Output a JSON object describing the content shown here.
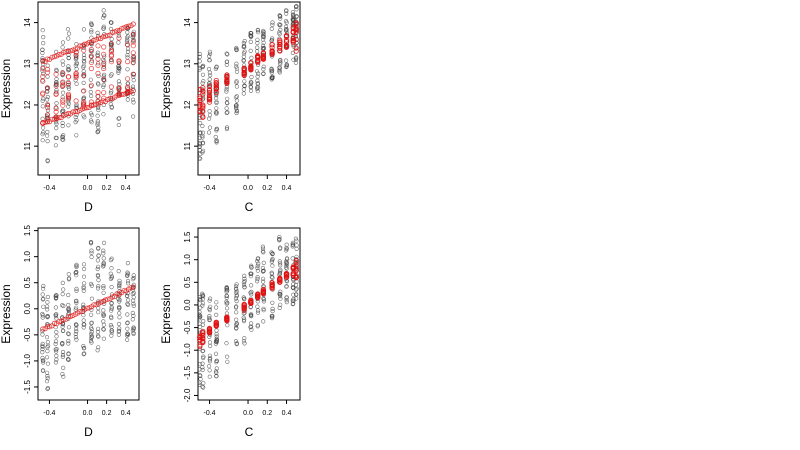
{
  "colors": {
    "observed": "#3a3a3a",
    "fitted": "#e01010",
    "axis": "#000000"
  },
  "chart_data": [
    {
      "type": "scatter",
      "title": "",
      "xlabel": "D",
      "ylabel": "Expression",
      "xlim": [
        -0.52,
        0.54
      ],
      "ylim": [
        10.3,
        14.5
      ],
      "xticks": [
        -0.4,
        0.0,
        0.2,
        0.4
      ],
      "xtick_labels": [
        "-0.4",
        "0.0",
        "0.2",
        "0.4"
      ],
      "yticks": [
        11,
        12,
        13,
        14
      ],
      "ytick_labels": [
        "11",
        "12",
        "13",
        "14"
      ],
      "grid": false,
      "observed": {
        "x_levels": [
          -0.47,
          -0.42,
          -0.33,
          -0.26,
          -0.2,
          -0.12,
          -0.04,
          0.04,
          0.11,
          0.17,
          0.25,
          0.33,
          0.42,
          0.48
        ],
        "y_ranges": [
          [
            10.8,
            13.9
          ],
          [
            10.6,
            13.2
          ],
          [
            11.0,
            13.3
          ],
          [
            10.9,
            13.6
          ],
          [
            11.4,
            13.9
          ],
          [
            11.2,
            13.7
          ],
          [
            11.6,
            13.9
          ],
          [
            11.5,
            14.0
          ],
          [
            11.3,
            14.2
          ],
          [
            11.6,
            14.4
          ],
          [
            11.6,
            14.1
          ],
          [
            11.5,
            13.9
          ],
          [
            11.9,
            14.1
          ],
          [
            11.7,
            13.8
          ]
        ],
        "points_per_level": 22
      },
      "fitted": {
        "lines": [
          {
            "x": [
              -0.47,
              0.48
            ],
            "y": [
              11.55,
              12.35
            ]
          },
          {
            "x": [
              -0.47,
              0.48
            ],
            "y": [
              13.05,
              13.95
            ]
          }
        ],
        "vertical_spread": true
      }
    },
    {
      "type": "scatter",
      "title": "",
      "xlabel": "C",
      "ylabel": "Expression",
      "xlim": [
        -0.52,
        0.54
      ],
      "ylim": [
        10.3,
        14.5
      ],
      "xticks": [
        -0.4,
        0.0,
        0.2,
        0.4
      ],
      "xtick_labels": [
        "-0.4",
        "0.0",
        "0.2",
        "0.4"
      ],
      "yticks": [
        11,
        12,
        13,
        14
      ],
      "ytick_labels": [
        "11",
        "12",
        "13",
        "14"
      ],
      "grid": false,
      "observed": {
        "x_levels": [
          -0.5,
          -0.47,
          -0.4,
          -0.33,
          -0.22,
          -0.12,
          -0.04,
          0.03,
          0.1,
          0.16,
          0.25,
          0.33,
          0.4,
          0.47,
          0.5
        ],
        "y_ranges": [
          [
            10.5,
            13.3
          ],
          [
            10.8,
            13.1
          ],
          [
            11.3,
            13.3
          ],
          [
            11.0,
            13.0
          ],
          [
            11.4,
            13.4
          ],
          [
            11.8,
            13.5
          ],
          [
            12.0,
            13.6
          ],
          [
            12.3,
            13.8
          ],
          [
            12.3,
            13.9
          ],
          [
            12.5,
            13.9
          ],
          [
            12.6,
            14.1
          ],
          [
            12.6,
            14.2
          ],
          [
            12.8,
            14.3
          ],
          [
            12.9,
            14.4
          ],
          [
            13.0,
            14.4
          ]
        ],
        "points_per_level": 22
      },
      "fitted": {
        "x": [
          -0.5,
          -0.47,
          -0.4,
          -0.33,
          -0.22,
          -0.04,
          0.03,
          0.1,
          0.16,
          0.25,
          0.33,
          0.4,
          0.47,
          0.5
        ],
        "y": [
          12.0,
          12.1,
          12.25,
          12.45,
          12.65,
          12.8,
          12.95,
          13.1,
          13.2,
          13.35,
          13.45,
          13.55,
          13.65,
          13.75
        ],
        "spread": [
          [
            11.6,
            12.5
          ],
          [
            11.7,
            12.5
          ],
          [
            12.0,
            12.5
          ],
          [
            12.3,
            12.6
          ],
          [
            12.5,
            12.8
          ],
          [
            12.7,
            12.9
          ],
          [
            12.85,
            13.05
          ],
          [
            13.0,
            13.2
          ],
          [
            13.1,
            13.3
          ],
          [
            13.2,
            13.5
          ],
          [
            13.3,
            13.6
          ],
          [
            13.4,
            13.7
          ],
          [
            13.5,
            13.9
          ],
          [
            13.3,
            14.0
          ]
        ]
      }
    },
    {
      "type": "scatter",
      "title": "",
      "xlabel": "D",
      "ylabel": "Expression",
      "xlim": [
        -0.52,
        0.54
      ],
      "ylim": [
        -1.75,
        1.55
      ],
      "xticks": [
        -0.4,
        0.0,
        0.2,
        0.4
      ],
      "xtick_labels": [
        "-0.4",
        "0.0",
        "0.2",
        "0.4"
      ],
      "yticks": [
        -1.5,
        -1.0,
        -0.5,
        0.0,
        0.5,
        1.0,
        1.5
      ],
      "ytick_labels": [
        "-1.5",
        "-1.0",
        "-0.5",
        "0.0",
        "0.5",
        "1.0",
        "1.5"
      ],
      "grid": false,
      "observed": {
        "x_levels": [
          -0.47,
          -0.42,
          -0.33,
          -0.26,
          -0.2,
          -0.12,
          -0.04,
          0.04,
          0.11,
          0.17,
          0.25,
          0.33,
          0.42,
          0.48
        ],
        "y_ranges": [
          [
            -1.3,
            0.5
          ],
          [
            -1.6,
            0.4
          ],
          [
            -1.2,
            0.3
          ],
          [
            -1.4,
            0.6
          ],
          [
            -1.0,
            0.7
          ],
          [
            -0.8,
            1.0
          ],
          [
            -0.9,
            0.9
          ],
          [
            -0.7,
            1.3
          ],
          [
            -0.8,
            1.4
          ],
          [
            -0.6,
            1.3
          ],
          [
            -0.6,
            1.0
          ],
          [
            -0.5,
            0.8
          ],
          [
            -0.6,
            0.9
          ],
          [
            -0.5,
            0.7
          ]
        ],
        "points_per_level": 22
      },
      "fitted": {
        "lines": [
          {
            "x": [
              -0.47,
              0.48
            ],
            "y": [
              -0.4,
              0.42
            ]
          }
        ],
        "vertical_spread": false
      }
    },
    {
      "type": "scatter",
      "title": "",
      "xlabel": "C",
      "ylabel": "Expression",
      "xlim": [
        -0.52,
        0.54
      ],
      "ylim": [
        -2.1,
        1.7
      ],
      "xticks": [
        -0.4,
        0.0,
        0.2,
        0.4
      ],
      "xtick_labels": [
        "-0.4",
        "0.0",
        "0.2",
        "0.4"
      ],
      "yticks": [
        -2.0,
        -1.5,
        -1.0,
        -0.5,
        0.0,
        0.5,
        1.0,
        1.5
      ],
      "ytick_labels": [
        "-2.0",
        "-1.5",
        "-1.0",
        "-0.5",
        "0.0",
        "0.5",
        "1.0",
        "1.5"
      ],
      "grid": false,
      "observed": {
        "x_levels": [
          -0.5,
          -0.47,
          -0.4,
          -0.33,
          -0.22,
          -0.12,
          -0.04,
          0.03,
          0.1,
          0.16,
          0.25,
          0.33,
          0.4,
          0.47,
          0.5
        ],
        "y_ranges": [
          [
            -1.9,
            0.2
          ],
          [
            -2.0,
            0.3
          ],
          [
            -1.6,
            0.2
          ],
          [
            -1.7,
            0.1
          ],
          [
            -1.3,
            0.4
          ],
          [
            -1.0,
            0.5
          ],
          [
            -0.9,
            0.7
          ],
          [
            -0.6,
            0.9
          ],
          [
            -0.5,
            1.1
          ],
          [
            -0.4,
            1.3
          ],
          [
            -0.3,
            1.2
          ],
          [
            -0.2,
            1.5
          ],
          [
            -0.2,
            1.6
          ],
          [
            0.0,
            1.4
          ],
          [
            0.1,
            1.5
          ]
        ],
        "points_per_level": 22
      },
      "fitted": {
        "x": [
          -0.5,
          -0.47,
          -0.4,
          -0.33,
          -0.22,
          -0.04,
          0.03,
          0.1,
          0.16,
          0.25,
          0.33,
          0.4,
          0.47,
          0.5
        ],
        "y": [
          -0.8,
          -0.72,
          -0.55,
          -0.42,
          -0.3,
          -0.05,
          0.05,
          0.18,
          0.3,
          0.42,
          0.55,
          0.65,
          0.75,
          0.82
        ],
        "spread": [
          [
            -0.95,
            -0.6
          ],
          [
            -0.85,
            -0.55
          ],
          [
            -0.62,
            -0.5
          ],
          [
            -0.48,
            -0.38
          ],
          [
            -0.35,
            -0.25
          ],
          [
            -0.12,
            0.02
          ],
          [
            0.0,
            0.1
          ],
          [
            0.12,
            0.25
          ],
          [
            0.25,
            0.35
          ],
          [
            0.35,
            0.5
          ],
          [
            0.5,
            0.6
          ],
          [
            0.6,
            0.7
          ],
          [
            0.65,
            0.85
          ],
          [
            0.6,
            1.0
          ]
        ]
      }
    }
  ]
}
